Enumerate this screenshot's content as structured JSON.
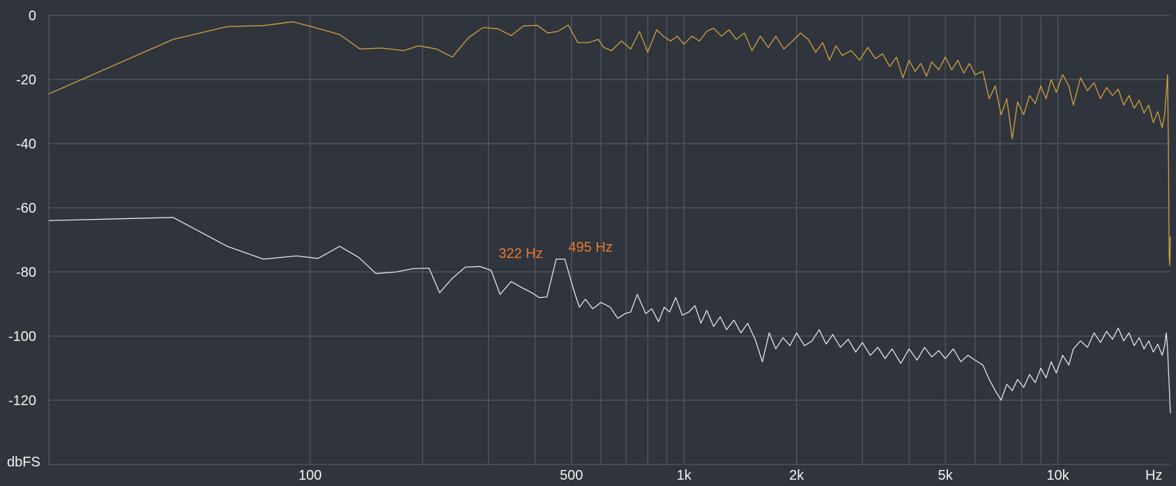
{
  "chart_data": {
    "type": "line",
    "title": "",
    "xlabel": "",
    "ylabel": "",
    "x_scale": "log",
    "xlim": [
      20,
      20000
    ],
    "ylim": [
      -140,
      0
    ],
    "grid": true,
    "y_unit_label": "dbFS",
    "x_unit_label": "Hz",
    "y_ticks": [
      {
        "value": 0,
        "label": "0"
      },
      {
        "value": -20,
        "label": "-20"
      },
      {
        "value": -40,
        "label": "-40"
      },
      {
        "value": -60,
        "label": "-60"
      },
      {
        "value": -80,
        "label": "-80"
      },
      {
        "value": -100,
        "label": "-100"
      },
      {
        "value": -120,
        "label": "-120"
      }
    ],
    "x_ticks": [
      {
        "value": 100,
        "label": "100"
      },
      {
        "value": 500,
        "label": "500"
      },
      {
        "value": 1000,
        "label": "1k"
      },
      {
        "value": 2000,
        "label": "2k"
      },
      {
        "value": 5000,
        "label": "5k"
      },
      {
        "value": 10000,
        "label": "10k"
      }
    ],
    "x_gridlines": [
      100,
      200,
      300,
      400,
      500,
      600,
      700,
      800,
      900,
      1000,
      2000,
      3000,
      4000,
      5000,
      6000,
      7000,
      8000,
      9000,
      10000
    ],
    "annotations": [
      {
        "label": "322 Hz",
        "x": 322,
        "y": -77
      },
      {
        "label": "495 Hz",
        "x": 495,
        "y": -75
      }
    ],
    "series": [
      {
        "color": "#d4a33e",
        "points": [
          [
            20,
            -24.5
          ],
          [
            43,
            -7.5
          ],
          [
            60,
            -3.5
          ],
          [
            75,
            -3.2
          ],
          [
            90,
            -2.0
          ],
          [
            103,
            -3.8
          ],
          [
            120,
            -6.0
          ],
          [
            136,
            -10.5
          ],
          [
            155,
            -10.2
          ],
          [
            178,
            -11.0
          ],
          [
            195,
            -9.5
          ],
          [
            218,
            -10.5
          ],
          [
            240,
            -13.0
          ],
          [
            265,
            -7.0
          ],
          [
            290,
            -3.8
          ],
          [
            318,
            -4.2
          ],
          [
            345,
            -6.3
          ],
          [
            372,
            -3.3
          ],
          [
            405,
            -3.1
          ],
          [
            432,
            -5.5
          ],
          [
            460,
            -5.0
          ],
          [
            490,
            -3.0
          ],
          [
            520,
            -8.5
          ],
          [
            555,
            -8.5
          ],
          [
            590,
            -7.5
          ],
          [
            610,
            -10.0
          ],
          [
            640,
            -11.0
          ],
          [
            680,
            -8.0
          ],
          [
            720,
            -10.5
          ],
          [
            760,
            -5.0
          ],
          [
            800,
            -11.5
          ],
          [
            845,
            -4.5
          ],
          [
            880,
            -6.5
          ],
          [
            920,
            -8.0
          ],
          [
            960,
            -6.5
          ],
          [
            1000,
            -9.0
          ],
          [
            1050,
            -6.5
          ],
          [
            1100,
            -8.0
          ],
          [
            1150,
            -5.0
          ],
          [
            1200,
            -4.0
          ],
          [
            1260,
            -6.5
          ],
          [
            1320,
            -4.5
          ],
          [
            1380,
            -7.5
          ],
          [
            1450,
            -5.5
          ],
          [
            1520,
            -11.0
          ],
          [
            1600,
            -6.5
          ],
          [
            1680,
            -10.0
          ],
          [
            1760,
            -6.5
          ],
          [
            1850,
            -10.5
          ],
          [
            1950,
            -8.0
          ],
          [
            2050,
            -5.5
          ],
          [
            2150,
            -7.5
          ],
          [
            2250,
            -11.5
          ],
          [
            2350,
            -8.5
          ],
          [
            2450,
            -14.0
          ],
          [
            2550,
            -9.5
          ],
          [
            2650,
            -12.5
          ],
          [
            2800,
            -11.0
          ],
          [
            2950,
            -14.0
          ],
          [
            3100,
            -10.0
          ],
          [
            3250,
            -13.5
          ],
          [
            3400,
            -12.0
          ],
          [
            3550,
            -16.0
          ],
          [
            3700,
            -13.0
          ],
          [
            3850,
            -19.5
          ],
          [
            4000,
            -14.0
          ],
          [
            4150,
            -17.5
          ],
          [
            4300,
            -15.0
          ],
          [
            4450,
            -19.0
          ],
          [
            4600,
            -14.5
          ],
          [
            4800,
            -17.0
          ],
          [
            5000,
            -13.0
          ],
          [
            5200,
            -17.0
          ],
          [
            5400,
            -14.0
          ],
          [
            5600,
            -18.0
          ],
          [
            5800,
            -15.0
          ],
          [
            6000,
            -18.5
          ],
          [
            6300,
            -17.5
          ],
          [
            6550,
            -26.0
          ],
          [
            6800,
            -22.0
          ],
          [
            7050,
            -31.0
          ],
          [
            7300,
            -26.0
          ],
          [
            7550,
            -38.5
          ],
          [
            7800,
            -27.0
          ],
          [
            8100,
            -31.0
          ],
          [
            8400,
            -25.0
          ],
          [
            8700,
            -27.5
          ],
          [
            9000,
            -22.0
          ],
          [
            9300,
            -26.0
          ],
          [
            9600,
            -20.0
          ],
          [
            9900,
            -24.0
          ],
          [
            10300,
            -18.5
          ],
          [
            10700,
            -22.0
          ],
          [
            11000,
            -28.0
          ],
          [
            11500,
            -19.5
          ],
          [
            12000,
            -23.5
          ],
          [
            12500,
            -21.0
          ],
          [
            13000,
            -26.0
          ],
          [
            13500,
            -22.5
          ],
          [
            14000,
            -25.0
          ],
          [
            14500,
            -23.0
          ],
          [
            15000,
            -28.0
          ],
          [
            15500,
            -25.0
          ],
          [
            16000,
            -29.0
          ],
          [
            16500,
            -26.5
          ],
          [
            17000,
            -30.5
          ],
          [
            17500,
            -28.0
          ],
          [
            18000,
            -33.5
          ],
          [
            18500,
            -30.0
          ],
          [
            19000,
            -35.0
          ],
          [
            19300,
            -31.0
          ],
          [
            19500,
            -24.0
          ],
          [
            19650,
            -18.5
          ],
          [
            19750,
            -40.0
          ],
          [
            19850,
            -75.0
          ],
          [
            19920,
            -78.0
          ],
          [
            19970,
            -71.0
          ],
          [
            20000,
            -69.0
          ]
        ]
      },
      {
        "color": "#e6e6e6",
        "points": [
          [
            20,
            -64.0
          ],
          [
            43,
            -63.0
          ],
          [
            60,
            -72.0
          ],
          [
            75,
            -76.0
          ],
          [
            92,
            -75.0
          ],
          [
            105,
            -75.8
          ],
          [
            120,
            -72.0
          ],
          [
            135,
            -75.5
          ],
          [
            150,
            -80.5
          ],
          [
            170,
            -80.0
          ],
          [
            188,
            -79.0
          ],
          [
            208,
            -78.8
          ],
          [
            222,
            -86.5
          ],
          [
            240,
            -82.0
          ],
          [
            260,
            -78.5
          ],
          [
            285,
            -78.3
          ],
          [
            305,
            -79.5
          ],
          [
            322,
            -87.0
          ],
          [
            345,
            -83.0
          ],
          [
            370,
            -85.0
          ],
          [
            392,
            -86.5
          ],
          [
            410,
            -88.0
          ],
          [
            430,
            -87.8
          ],
          [
            455,
            -76.0
          ],
          [
            480,
            -76.0
          ],
          [
            505,
            -85.0
          ],
          [
            525,
            -91.0
          ],
          [
            545,
            -88.5
          ],
          [
            570,
            -91.5
          ],
          [
            600,
            -89.5
          ],
          [
            635,
            -91.0
          ],
          [
            665,
            -94.5
          ],
          [
            695,
            -93.0
          ],
          [
            720,
            -92.5
          ],
          [
            750,
            -87.0
          ],
          [
            790,
            -93.0
          ],
          [
            820,
            -91.5
          ],
          [
            855,
            -95.5
          ],
          [
            885,
            -91.0
          ],
          [
            915,
            -92.5
          ],
          [
            950,
            -88.0
          ],
          [
            990,
            -93.5
          ],
          [
            1030,
            -92.5
          ],
          [
            1070,
            -90.5
          ],
          [
            1110,
            -96.0
          ],
          [
            1150,
            -92.0
          ],
          [
            1200,
            -97.0
          ],
          [
            1250,
            -94.0
          ],
          [
            1300,
            -98.0
          ],
          [
            1360,
            -95.0
          ],
          [
            1420,
            -99.0
          ],
          [
            1480,
            -96.0
          ],
          [
            1550,
            -101.0
          ],
          [
            1620,
            -108.0
          ],
          [
            1690,
            -99.0
          ],
          [
            1760,
            -104.0
          ],
          [
            1840,
            -100.5
          ],
          [
            1920,
            -103.0
          ],
          [
            2000,
            -99.0
          ],
          [
            2100,
            -103.0
          ],
          [
            2200,
            -101.5
          ],
          [
            2300,
            -98.0
          ],
          [
            2400,
            -102.5
          ],
          [
            2500,
            -99.5
          ],
          [
            2620,
            -103.5
          ],
          [
            2750,
            -101.0
          ],
          [
            2880,
            -105.0
          ],
          [
            3000,
            -102.0
          ],
          [
            3150,
            -106.0
          ],
          [
            3300,
            -103.5
          ],
          [
            3450,
            -107.0
          ],
          [
            3600,
            -104.0
          ],
          [
            3800,
            -108.5
          ],
          [
            4000,
            -104.0
          ],
          [
            4200,
            -107.5
          ],
          [
            4400,
            -103.5
          ],
          [
            4600,
            -106.5
          ],
          [
            4800,
            -104.5
          ],
          [
            5000,
            -107.0
          ],
          [
            5250,
            -104.0
          ],
          [
            5500,
            -108.0
          ],
          [
            5750,
            -106.0
          ],
          [
            6000,
            -107.5
          ],
          [
            6300,
            -109.0
          ],
          [
            6550,
            -113.5
          ],
          [
            6800,
            -117.0
          ],
          [
            7050,
            -120.0
          ],
          [
            7300,
            -115.0
          ],
          [
            7550,
            -117.0
          ],
          [
            7800,
            -113.5
          ],
          [
            8100,
            -116.0
          ],
          [
            8400,
            -112.0
          ],
          [
            8700,
            -114.5
          ],
          [
            9000,
            -110.0
          ],
          [
            9300,
            -113.0
          ],
          [
            9600,
            -108.0
          ],
          [
            9900,
            -111.5
          ],
          [
            10300,
            -106.0
          ],
          [
            10700,
            -109.0
          ],
          [
            11000,
            -104.0
          ],
          [
            11500,
            -101.5
          ],
          [
            12000,
            -103.5
          ],
          [
            12500,
            -99.0
          ],
          [
            13000,
            -102.0
          ],
          [
            13500,
            -98.5
          ],
          [
            14000,
            -101.0
          ],
          [
            14500,
            -97.5
          ],
          [
            15000,
            -101.5
          ],
          [
            15500,
            -99.0
          ],
          [
            16000,
            -103.0
          ],
          [
            16500,
            -100.5
          ],
          [
            17000,
            -104.0
          ],
          [
            17500,
            -101.5
          ],
          [
            18000,
            -105.0
          ],
          [
            18500,
            -102.5
          ],
          [
            19000,
            -106.0
          ],
          [
            19300,
            -103.0
          ],
          [
            19500,
            -99.0
          ],
          [
            19650,
            -104.0
          ],
          [
            19800,
            -113.0
          ],
          [
            19900,
            -118.0
          ],
          [
            19960,
            -122.0
          ],
          [
            20000,
            -124.0
          ]
        ]
      }
    ]
  }
}
